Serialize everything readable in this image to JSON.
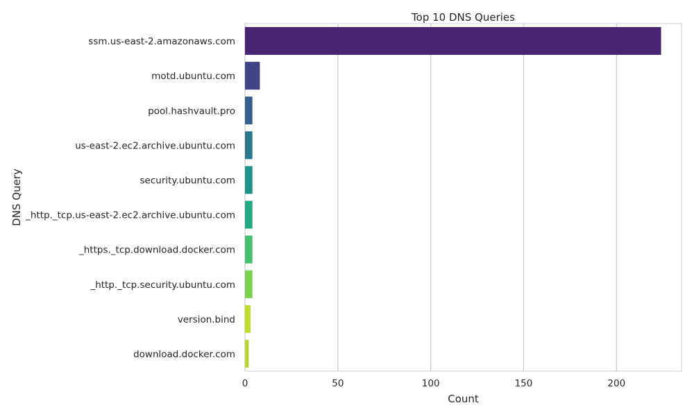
{
  "chart_data": {
    "type": "bar",
    "orientation": "horizontal",
    "title": "Top 10 DNS Queries",
    "xlabel": "Count",
    "ylabel": "DNS Query",
    "xlim": [
      0,
      235
    ],
    "x_ticks": [
      0,
      50,
      100,
      150,
      200
    ],
    "grid": true,
    "categories": [
      "ssm.us-east-2.amazonaws.com",
      "motd.ubuntu.com",
      "pool.hashvault.pro",
      "us-east-2.ec2.archive.ubuntu.com",
      "security.ubuntu.com",
      "_http._tcp.us-east-2.ec2.archive.ubuntu.com",
      "_https._tcp.download.docker.com",
      "_http._tcp.security.ubuntu.com",
      "version.bind",
      "download.docker.com"
    ],
    "values": [
      224,
      8,
      4,
      4,
      4,
      4,
      4,
      4,
      3,
      2
    ],
    "colors": [
      "#482475",
      "#414487",
      "#355f8d",
      "#2a788e",
      "#21918c",
      "#22a884",
      "#44bf70",
      "#7ad151",
      "#bddf26",
      "#b6d52e"
    ]
  }
}
